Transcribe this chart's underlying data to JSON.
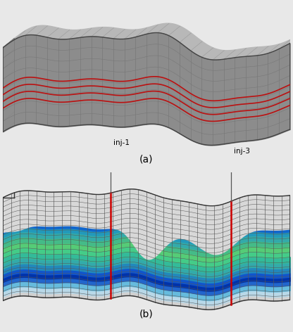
{
  "fig_bg": "#e8e8e8",
  "panel_a_bg": "#e0e0e0",
  "panel_b_bg": "#ffffff",
  "label_a": "(a)",
  "label_b": "(b)",
  "grid_color_a": "#787878",
  "body_color_a": "#8c8c8c",
  "face_color_a": "#a0a0a0",
  "red_line_color": "#bb1111",
  "inj1_label": "inj-1",
  "inj3_label": "inj-3",
  "inj_line_color": "#555555",
  "inj_well_color": "#cc0000",
  "grid_color_b": "#555555",
  "n_cols_a": 26,
  "n_rows_a": 8,
  "n_cols_b": 34,
  "n_rows_b": 22,
  "layer_colors_b": [
    "#e8e8e8",
    "#d8d8d8",
    "#c8c8c8",
    "#b8c8c8",
    "#a8c8c8",
    "#99cccc",
    "#88cccc",
    "#66ccbb",
    "#44ccaa",
    "#33bb99",
    "#44cc88",
    "#55cc77",
    "#44bb88",
    "#33aaaa",
    "#2299bb",
    "#1188cc",
    "#1166cc",
    "#0044bb",
    "#0033aa",
    "#1155bb",
    "#2277cc",
    "#3399cc"
  ]
}
